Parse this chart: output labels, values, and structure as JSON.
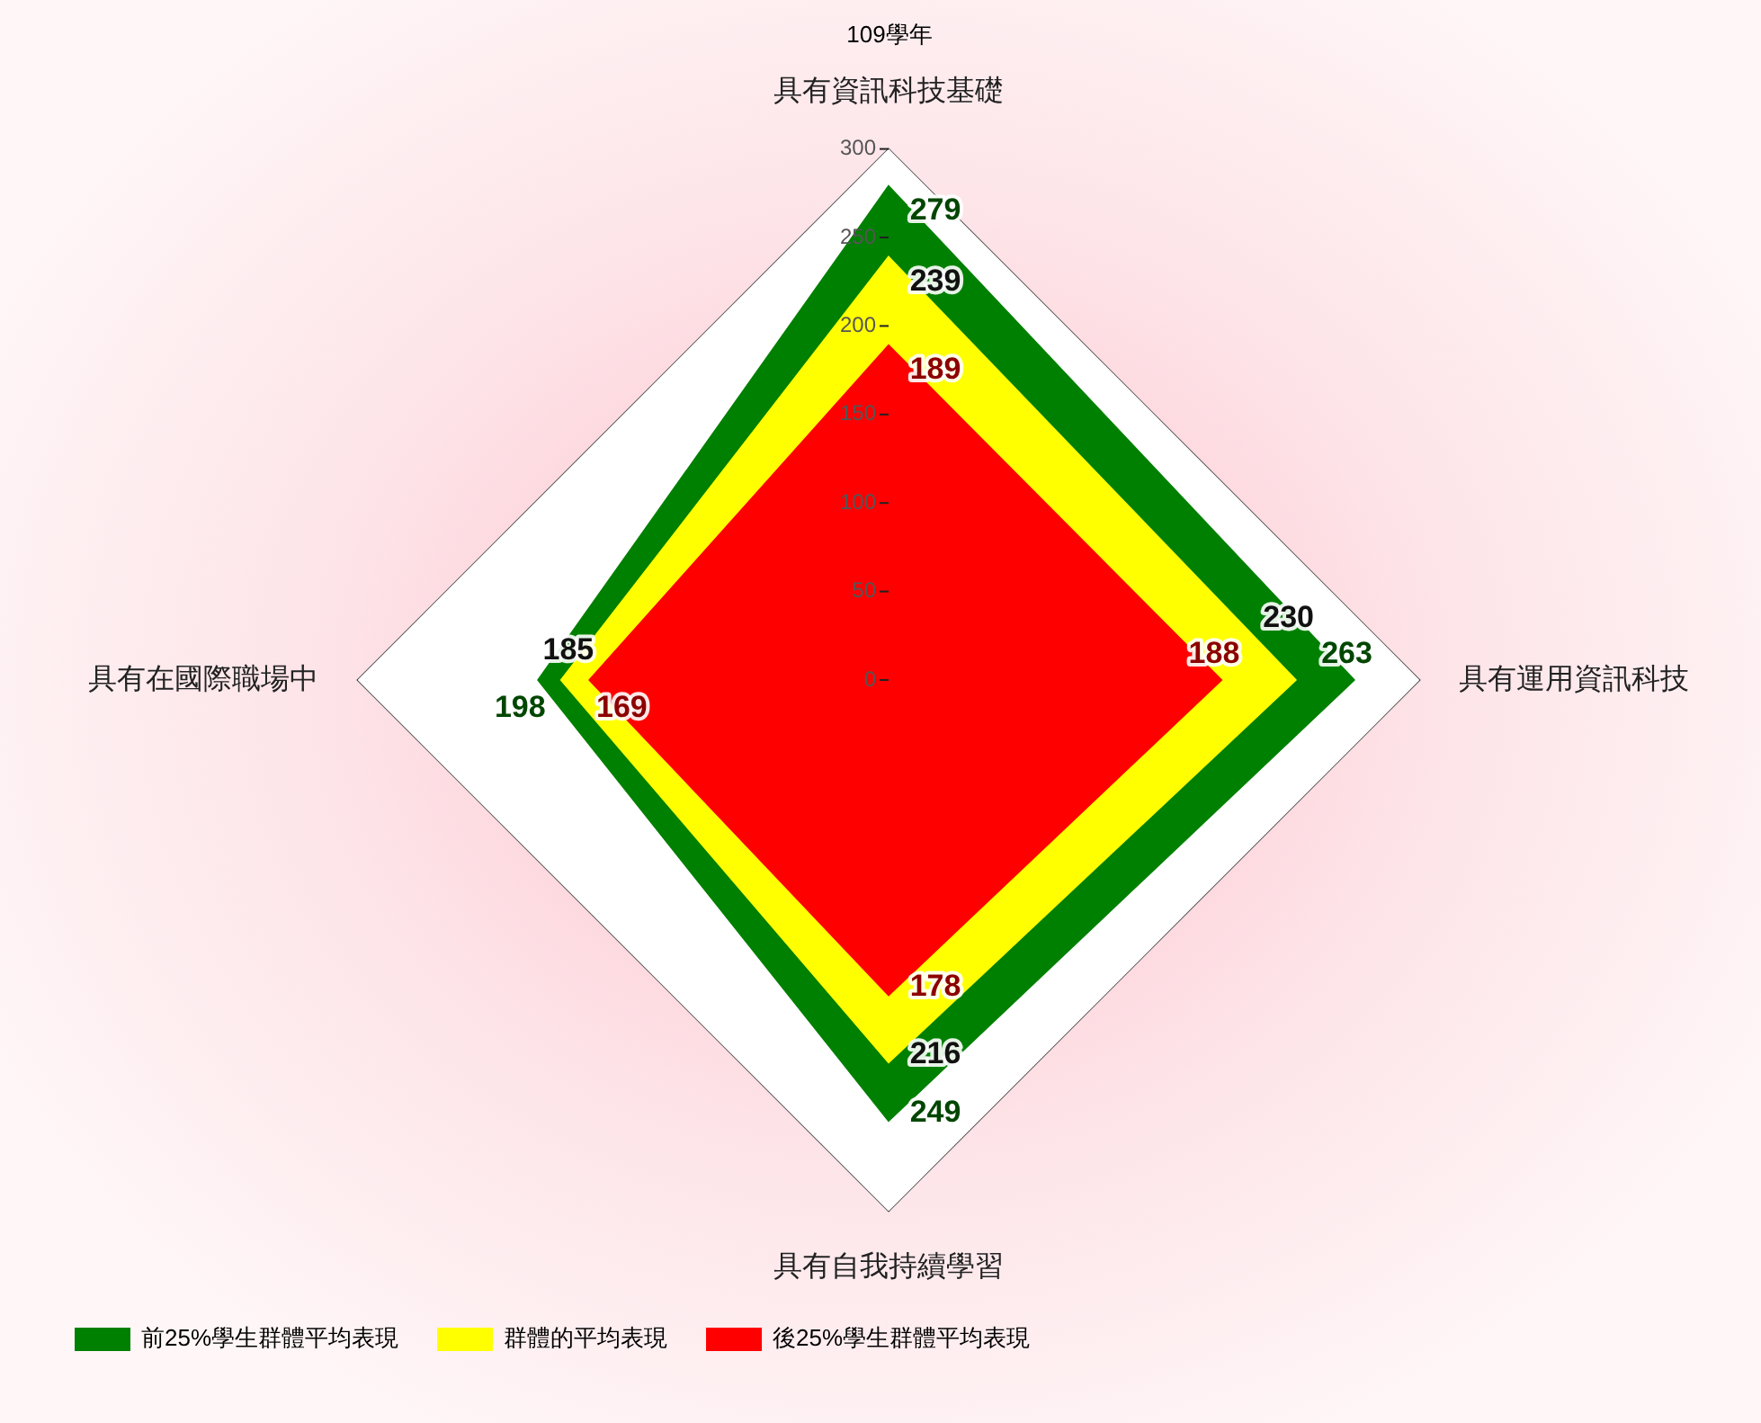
{
  "chart_data": {
    "type": "radar",
    "title": "109學年",
    "categories": [
      "具有資訊科技基礎",
      "具有運用資訊科技",
      "具有自我持續學習",
      "具有在國際職場中"
    ],
    "series": [
      {
        "name": "前25%學生群體平均表現",
        "color": "#008000",
        "values": [
          279,
          263,
          249,
          198
        ]
      },
      {
        "name": "群體的平均表現",
        "color": "#ffff00",
        "values": [
          239,
          230,
          216,
          185
        ]
      },
      {
        "name": "後25%學生群體平均表現",
        "color": "#ff0000",
        "values": [
          189,
          188,
          178,
          169
        ]
      }
    ],
    "ylim": [
      0,
      300
    ],
    "yticks": [
      0,
      50,
      100,
      150,
      200,
      250,
      300
    ],
    "grid": true,
    "legend": "bottom left",
    "data_labels": true
  }
}
